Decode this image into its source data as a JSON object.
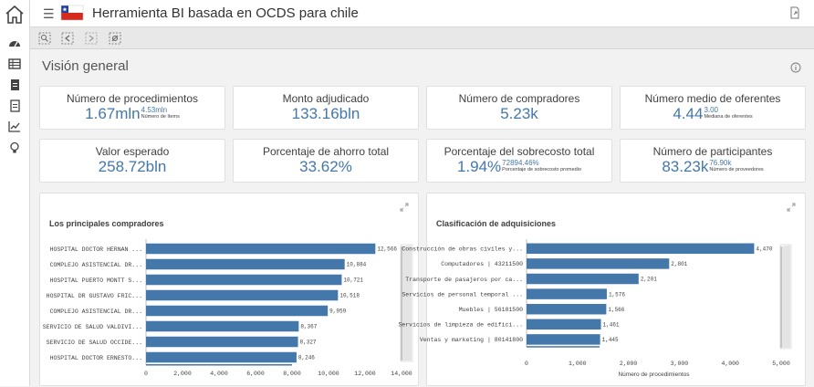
{
  "header": {
    "title": "Herramienta BI basada en OCDS para chile",
    "flag_colors": {
      "blue": "#1f3f9a",
      "white": "#ffffff",
      "red": "#d52b1e"
    }
  },
  "sidebar": {
    "icons": [
      "dashboard-icon",
      "table-icon",
      "document-icon",
      "form-icon",
      "chart-line-icon",
      "lightbulb-icon"
    ]
  },
  "sheet": {
    "title": "Visión general"
  },
  "kpis": [
    {
      "label": "Número de procedimientos",
      "value": "1.67mln",
      "sub_value": "4.53mln",
      "sub_label": "Número de ítems"
    },
    {
      "label": "Monto adjudicado",
      "value": "133.16bln"
    },
    {
      "label": "Número de compradores",
      "value": "5.23k"
    },
    {
      "label": "Número medio de oferentes",
      "value": "4.44",
      "sub_value": "3.00",
      "sub_label": "Mediana de oferentes"
    },
    {
      "label": "Valor esperado",
      "value": "258.72bln"
    },
    {
      "label": "Porcentaje de ahorro total",
      "value": "33.62%"
    },
    {
      "label": "Porcentaje del sobrecosto total",
      "value": "1.94%",
      "sub_value": "72894.46%",
      "sub_label": "Porcentaje de sobrecosto promedio"
    },
    {
      "label": "Número de participantes",
      "value": "83.23k",
      "sub_value": "76.90k",
      "sub_label": "Número de proveedores"
    }
  ],
  "colors": {
    "accent": "#4477aa",
    "bar": "#4477aa"
  },
  "chart_data": [
    {
      "type": "bar",
      "orientation": "horizontal",
      "title": "Los principales compradores",
      "categories": [
        "HOSPITAL DOCTOR HERNAN ...",
        "COMPLEJO ASISTENCIAL DR...",
        "HOSPITAL PUERTO MONTT S...",
        "HOSPITAL DR GUSTAVO FRIC...",
        "COMPLEJO ASISTENCIAL DR...",
        "SERVICIO DE SALUD VALDIVI...",
        "SERVICIO DE SALUD OCCIDE...",
        "HOSPITAL DOCTOR ERNESTO..."
      ],
      "values": [
        12566,
        10884,
        10721,
        10518,
        9959,
        8367,
        8327,
        8246
      ],
      "value_labels": [
        "12,566",
        "10,884",
        "10,721",
        "10,518",
        "9,959",
        "8,367",
        "8,327",
        "8,246"
      ],
      "xlim": [
        0,
        14000
      ],
      "xticks": [
        "0",
        "2,000",
        "4,000",
        "6,000",
        "8,000",
        "10,000",
        "12,000",
        "14,000"
      ],
      "xlabel": ""
    },
    {
      "type": "bar",
      "orientation": "horizontal",
      "title": "Clasificación de adquisiciones",
      "categories": [
        "Construcción de obras civiles y...",
        "Computadores | 43211500",
        "Transporte de pasajeros por ca...",
        "Servicios de personal temporal ...",
        "Muebles | 56101500",
        "Servicios de limpieza de edifici...",
        "Ventas y marketing | 80141800"
      ],
      "values": [
        4470,
        2801,
        2201,
        1576,
        1566,
        1461,
        1445
      ],
      "value_labels": [
        "4,470",
        "2,801",
        "2,201",
        "1,576",
        "1,566",
        "1,461",
        "1,445"
      ],
      "xlim": [
        0,
        5000
      ],
      "xticks": [
        "0",
        "1,000",
        "2,000",
        "3,000",
        "4,000",
        "5,000"
      ],
      "xlabel": "Número de procedimientos"
    }
  ]
}
